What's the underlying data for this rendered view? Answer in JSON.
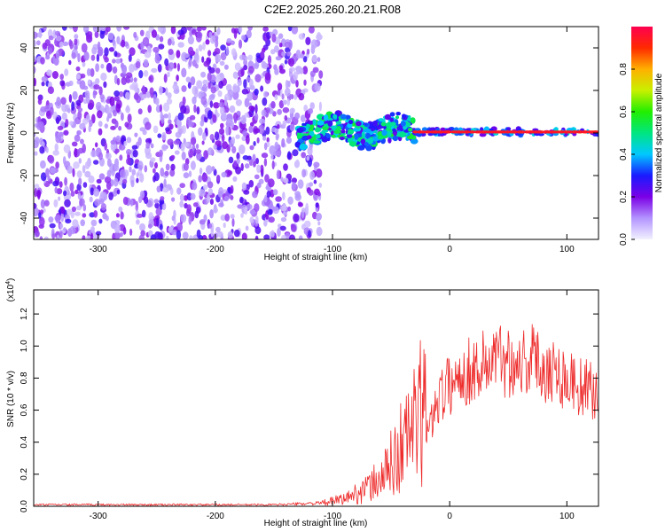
{
  "title": "C2E2.2025.260.20.21.R08",
  "colors": {
    "series_snr": "#ee2a2a",
    "axis": "#000000",
    "background": "#ffffff",
    "colorbar_stops": [
      "#f2f2ff",
      "#b394ff",
      "#7b00e6",
      "#1a1aff",
      "#00c8ff",
      "#00e680",
      "#22ee00",
      "#c8f000",
      "#ffb000",
      "#ff2a00",
      "#ff0050"
    ]
  },
  "chart_data": [
    {
      "type": "heatmap",
      "title": "C2E2.2025.260.20.21.R08",
      "xlabel": "Height of straight line (km)",
      "ylabel": "Frequency (Hz)",
      "xlim": [
        -355,
        127
      ],
      "ylim": [
        -50,
        50
      ],
      "xticks": [
        -300,
        -200,
        -100,
        0,
        100
      ],
      "yticks": [
        -40,
        -20,
        0,
        20,
        40
      ],
      "colorbar": {
        "label": "Normalized spectral amplitude",
        "range": [
          0,
          1
        ],
        "ticks": [
          "0.0",
          "0.2",
          "0.4",
          "0.6",
          "0.8"
        ]
      },
      "regions": [
        {
          "name": "noise",
          "x_range": [
            -355,
            -110
          ],
          "freq_range": [
            -50,
            50
          ],
          "amplitude": 0.1
        },
        {
          "name": "transition",
          "x_range": [
            -130,
            -30
          ],
          "freq_center": 1,
          "freq_halfwidth": 6,
          "amplitude": 0.45
        },
        {
          "name": "carrier-line",
          "x_range": [
            -30,
            127
          ],
          "freq_center": 0.5,
          "freq_halfwidth": 1.5,
          "amplitude": 0.95
        }
      ]
    },
    {
      "type": "line",
      "xlabel": "Height of straight line (km)",
      "ylabel": "SNR (10 * v/v)",
      "y_multiplier_label": "(x10",
      "y_multiplier_exp": "4",
      "y_multiplier_close": ")",
      "xlim": [
        -355,
        127
      ],
      "ylim": [
        0,
        1.35
      ],
      "xticks": [
        -300,
        -200,
        -100,
        0,
        100
      ],
      "yticks": [
        "0.0",
        "0.2",
        "0.4",
        "0.6",
        "0.8",
        "1.0",
        "1.2"
      ],
      "series": [
        {
          "name": "SNR",
          "x": [
            -355,
            -300,
            -250,
            -200,
            -150,
            -110,
            -90,
            -70,
            -55,
            -45,
            -38,
            -30,
            -22,
            -18,
            -12,
            -5,
            0,
            10,
            20,
            30,
            40,
            50,
            60,
            70,
            80,
            90,
            100,
            110,
            120,
            127
          ],
          "values": [
            0.01,
            0.01,
            0.01,
            0.01,
            0.01,
            0.02,
            0.05,
            0.12,
            0.22,
            0.35,
            0.45,
            0.55,
            0.65,
            0.45,
            0.68,
            0.74,
            0.78,
            0.85,
            0.88,
            0.92,
            0.95,
            0.94,
            0.93,
            0.95,
            0.9,
            0.87,
            0.82,
            0.78,
            0.74,
            0.72
          ]
        }
      ]
    }
  ]
}
